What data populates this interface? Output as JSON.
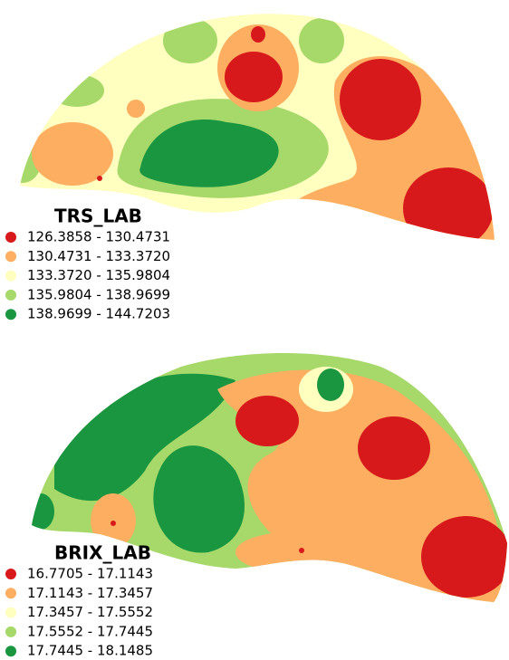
{
  "maps": [
    {
      "legend": {
        "title": "TRS_LAB",
        "classes": [
          {
            "label": "126.3858 - 130.4731",
            "color": "#d7191c"
          },
          {
            "label": "130.4731 - 133.3720",
            "color": "#fdae61"
          },
          {
            "label": "133.3720 - 135.9804",
            "color": "#ffffbf"
          },
          {
            "label": "135.9804 - 138.9699",
            "color": "#a6d96a"
          },
          {
            "label": "138.9699 - 144.7203",
            "color": "#1a9641"
          }
        ]
      }
    },
    {
      "legend": {
        "title": "BRIX_LAB",
        "classes": [
          {
            "label": "16.7705 - 17.1143",
            "color": "#d7191c"
          },
          {
            "label": "17.1143 - 17.3457",
            "color": "#fdae61"
          },
          {
            "label": "17.3457 - 17.5552",
            "color": "#ffffbf"
          },
          {
            "label": "17.5552 - 17.7445",
            "color": "#a6d96a"
          },
          {
            "label": "17.7445 - 18.1485",
            "color": "#1a9641"
          }
        ]
      }
    }
  ]
}
